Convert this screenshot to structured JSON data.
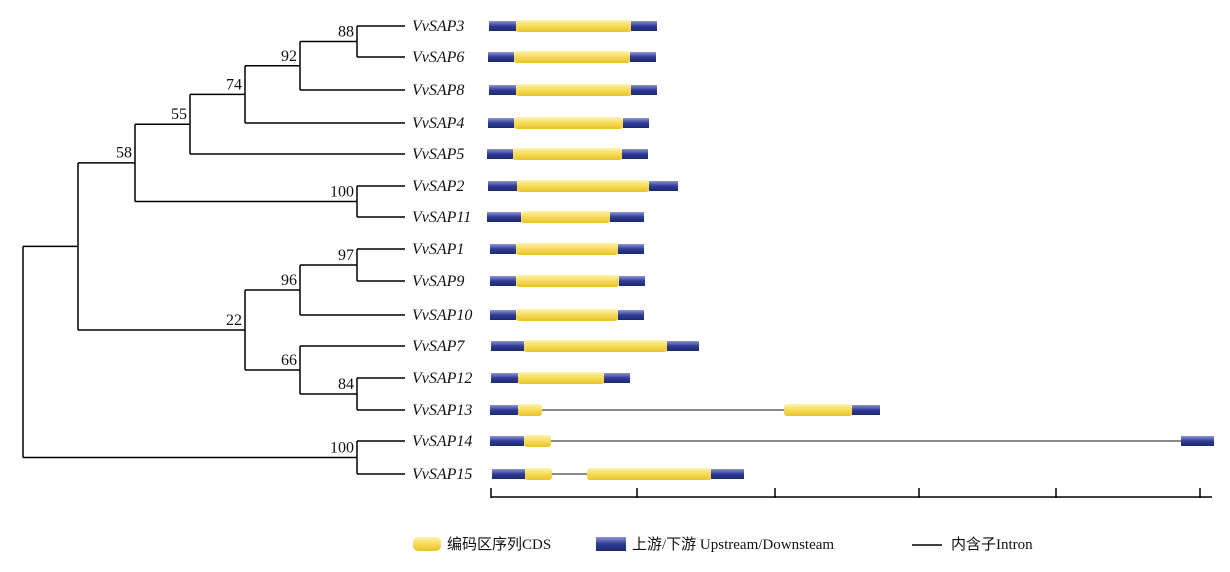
{
  "colors": {
    "cds_fill": "#f7dc56",
    "cds_highlight": "#fff2b0",
    "utr_fill": "#2e3c93",
    "utr_highlight": "#8d96d6",
    "intron": "#8a8a8a",
    "tree": "#000000"
  },
  "genes": [
    {
      "name": "VvSAP3",
      "segments": [
        [
          "utr",
          489,
          516
        ],
        [
          "cds",
          516,
          631
        ],
        [
          "utr",
          631,
          657
        ]
      ]
    },
    {
      "name": "VvSAP6",
      "segments": [
        [
          "utr",
          488,
          514
        ],
        [
          "cds",
          514,
          630
        ],
        [
          "utr",
          630,
          656
        ]
      ]
    },
    {
      "name": "VvSAP8",
      "segments": [
        [
          "utr",
          489,
          516
        ],
        [
          "cds",
          516,
          631
        ],
        [
          "utr",
          631,
          657
        ]
      ]
    },
    {
      "name": "VvSAP4",
      "segments": [
        [
          "utr",
          488,
          514
        ],
        [
          "cds",
          514,
          623
        ],
        [
          "utr",
          623,
          649
        ]
      ]
    },
    {
      "name": "VvSAP5",
      "segments": [
        [
          "utr",
          487,
          513
        ],
        [
          "cds",
          513,
          622
        ],
        [
          "utr",
          622,
          648
        ]
      ]
    },
    {
      "name": "VvSAP2",
      "segments": [
        [
          "utr",
          488,
          517
        ],
        [
          "cds",
          517,
          649
        ],
        [
          "utr",
          649,
          678
        ]
      ]
    },
    {
      "name": "VvSAP11",
      "segments": [
        [
          "utr",
          487,
          521
        ],
        [
          "cds",
          521,
          610
        ],
        [
          "utr",
          610,
          644
        ]
      ]
    },
    {
      "name": "VvSAP1",
      "segments": [
        [
          "utr",
          490,
          516
        ],
        [
          "cds",
          516,
          618
        ],
        [
          "utr",
          618,
          644
        ]
      ]
    },
    {
      "name": "VvSAP9",
      "segments": [
        [
          "utr",
          490,
          516
        ],
        [
          "cds",
          516,
          619
        ],
        [
          "utr",
          619,
          645
        ]
      ]
    },
    {
      "name": "VvSAP10",
      "segments": [
        [
          "utr",
          490,
          516
        ],
        [
          "cds",
          516,
          618
        ],
        [
          "utr",
          618,
          644
        ]
      ]
    },
    {
      "name": "VvSAP7",
      "segments": [
        [
          "utr",
          491,
          524
        ],
        [
          "cds",
          524,
          667
        ],
        [
          "utr",
          667,
          699
        ]
      ]
    },
    {
      "name": "VvSAP12",
      "segments": [
        [
          "utr",
          491,
          518
        ],
        [
          "cds",
          518,
          604
        ],
        [
          "utr",
          604,
          630
        ]
      ]
    },
    {
      "name": "VvSAP13",
      "segments": [
        [
          "utr",
          490,
          518
        ],
        [
          "cds",
          518,
          542
        ],
        [
          "intron",
          542,
          784
        ],
        [
          "cds",
          784,
          852
        ],
        [
          "utr",
          852,
          880
        ]
      ]
    },
    {
      "name": "VvSAP14",
      "segments": [
        [
          "utr",
          490,
          524
        ],
        [
          "cds",
          524,
          551
        ],
        [
          "intron",
          551,
          1181
        ],
        [
          "utr",
          1181,
          1214
        ]
      ]
    },
    {
      "name": "VvSAP15",
      "segments": [
        [
          "utr",
          492,
          525
        ],
        [
          "cds",
          525,
          552
        ],
        [
          "intron",
          552,
          587
        ],
        [
          "cds",
          587,
          711
        ],
        [
          "utr",
          711,
          744
        ]
      ]
    }
  ],
  "bootstrap": [
    {
      "value": "88",
      "node": [
        357,
        26,
        57
      ]
    },
    {
      "value": "92",
      "node": [
        300,
        42,
        90
      ]
    },
    {
      "value": "74",
      "node": [
        245,
        66,
        123
      ]
    },
    {
      "value": "55",
      "node": [
        190,
        94,
        154
      ]
    },
    {
      "value": "100",
      "node": [
        357,
        186,
        217
      ]
    },
    {
      "value": "58",
      "node": [
        135,
        124,
        201
      ]
    },
    {
      "value": "97",
      "node": [
        357,
        249,
        281
      ]
    },
    {
      "value": "96",
      "node": [
        300,
        265,
        315
      ]
    },
    {
      "value": "84",
      "node": [
        357,
        378,
        410
      ]
    },
    {
      "value": "66",
      "node": [
        300,
        346,
        394
      ]
    },
    {
      "value": "22",
      "node": [
        245,
        290,
        370
      ]
    },
    {
      "value": "100",
      "node": [
        357,
        441,
        474
      ]
    }
  ],
  "legend": {
    "cds": "编码区序列CDS",
    "utr": "上游/下游 Upstream/Downsteam",
    "intron": "内含子Intron"
  }
}
